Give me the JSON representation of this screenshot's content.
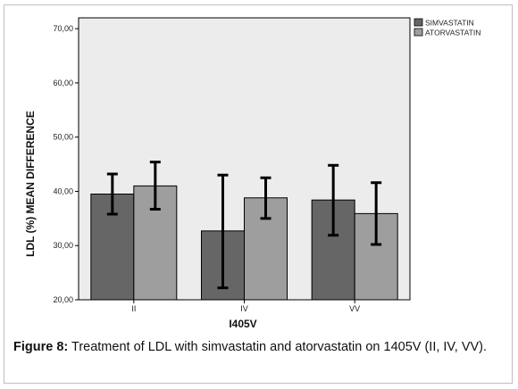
{
  "chart_data": {
    "type": "bar",
    "xlabel": "I405V",
    "ylabel": "LDL (%) MEAN DIFFERENCE",
    "categories": [
      "II",
      "IV",
      "VV"
    ],
    "ylim": [
      20,
      72
    ],
    "yticks": [
      "20,00",
      "30,00",
      "40,00",
      "50,00",
      "60,00",
      "70,00"
    ],
    "ytick_values": [
      20,
      30,
      40,
      50,
      60,
      70
    ],
    "legend_position": "top-right",
    "grid": false,
    "series": [
      {
        "name": "SIMVASTATIN",
        "color": "#666666",
        "values": [
          39.5,
          32.7,
          38.4
        ],
        "error_low": [
          35.8,
          22.2,
          31.9
        ],
        "error_high": [
          43.2,
          43.0,
          44.8
        ]
      },
      {
        "name": "ATORVASTATIN",
        "color": "#9e9e9e",
        "values": [
          41.0,
          38.8,
          35.9
        ],
        "error_low": [
          36.7,
          35.0,
          30.2
        ],
        "error_high": [
          45.4,
          42.5,
          41.6
        ]
      }
    ],
    "plot_background": "#ececec"
  },
  "caption": {
    "label": "Figure 8:",
    "text": " Treatment of LDL with simvastatin and atorvastatin on 1405V (II, IV, VV)."
  }
}
